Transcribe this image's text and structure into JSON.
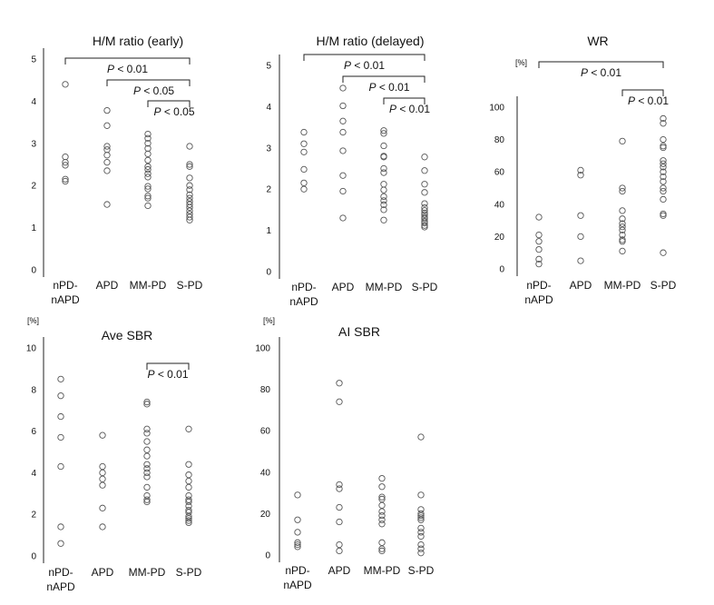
{
  "chart_data": [
    {
      "type": "scatter",
      "title": "H/M ratio (early)",
      "unit_label": "",
      "categories": [
        "nPD-nAPD",
        "APD",
        "MM-PD",
        "S-PD"
      ],
      "yticks": [
        0,
        1,
        2,
        3,
        4,
        5
      ],
      "ylim": [
        0,
        5
      ],
      "grid": false,
      "values": [
        [
          4.4,
          2.68,
          2.55,
          2.48,
          2.15,
          2.1
        ],
        [
          3.78,
          3.42,
          2.93,
          2.85,
          2.72,
          2.55,
          2.35,
          1.55
        ],
        [
          3.22,
          3.12,
          3.0,
          2.88,
          2.75,
          2.6,
          2.45,
          2.38,
          2.28,
          2.2,
          1.98,
          1.92,
          1.75,
          1.7,
          1.52
        ],
        [
          2.93,
          2.5,
          2.45,
          2.18,
          2.0,
          1.9,
          1.78,
          1.7,
          1.62,
          1.55,
          1.48,
          1.4,
          1.32,
          1.25,
          1.18
        ]
      ],
      "brackets": [
        {
          "from": 0,
          "to": 3,
          "label_p": "P",
          "label_rest": " <  0.01"
        },
        {
          "from": 1,
          "to": 3,
          "label_p": "P",
          "label_rest": " < 0.05"
        },
        {
          "from": 2,
          "to": 3,
          "label_p": "P",
          "label_rest": " < 0.05"
        }
      ]
    },
    {
      "type": "scatter",
      "title": "H/M ratio (delayed)",
      "unit_label": "",
      "categories": [
        "nPD-nAPD",
        "APD",
        "MM-PD",
        "S-PD"
      ],
      "yticks": [
        0,
        1,
        2,
        3,
        4,
        5
      ],
      "ylim": [
        0,
        5
      ],
      "grid": false,
      "values": [
        [
          3.38,
          3.1,
          2.9,
          2.48,
          2.15,
          2.0
        ],
        [
          4.45,
          4.02,
          3.65,
          3.38,
          2.93,
          2.33,
          1.95,
          1.3
        ],
        [
          3.42,
          3.35,
          3.05,
          2.8,
          2.78,
          2.5,
          2.4,
          2.12,
          1.98,
          1.82,
          1.72,
          1.62,
          1.5,
          1.25
        ],
        [
          2.78,
          2.45,
          2.12,
          1.92,
          1.65,
          1.55,
          1.48,
          1.42,
          1.38,
          1.32,
          1.28,
          1.22,
          1.18,
          1.12,
          1.08
        ]
      ],
      "brackets": [
        {
          "from": 0,
          "to": 3,
          "label_p": "P",
          "label_rest": " < 0.01"
        },
        {
          "from": 1,
          "to": 3,
          "label_p": "P",
          "label_rest": " < 0.01"
        },
        {
          "from": 2,
          "to": 3,
          "label_p": "P",
          "label_rest": " < 0.01"
        }
      ]
    },
    {
      "type": "scatter",
      "title": "WR",
      "unit_label": "[%]",
      "categories": [
        "nPD-nAPD",
        "APD",
        "MM-PD",
        "S-PD"
      ],
      "yticks": [
        0,
        20,
        40,
        60,
        80,
        100
      ],
      "ylim": [
        0,
        100
      ],
      "grid": false,
      "values": [
        [
          32,
          21,
          17,
          12,
          6,
          3
        ],
        [
          61,
          58,
          33,
          20,
          5
        ],
        [
          79,
          50,
          48,
          36,
          31,
          28,
          26,
          24,
          21,
          18,
          17,
          11
        ],
        [
          93,
          90,
          80,
          76,
          75,
          67,
          65,
          63,
          60,
          57,
          54,
          50,
          48,
          43,
          34,
          33,
          10
        ]
      ],
      "brackets": [
        {
          "from": 0,
          "to": 3,
          "label_p": "P",
          "label_rest": " < 0.01"
        },
        {
          "from": 2,
          "to": 3,
          "label_p": "P",
          "label_rest": " < 0.01"
        }
      ]
    },
    {
      "type": "scatter",
      "title": "Ave SBR",
      "unit_label": "[%]",
      "categories": [
        "nPD-nAPD",
        "APD",
        "MM-PD",
        "S-PD"
      ],
      "yticks": [
        0,
        2,
        4,
        6,
        8,
        10
      ],
      "ylim": [
        0,
        10
      ],
      "grid": false,
      "values": [
        [
          8.5,
          7.7,
          6.7,
          5.7,
          4.3,
          1.4,
          0.6
        ],
        [
          5.8,
          4.3,
          4.0,
          3.7,
          3.4,
          2.3,
          1.4
        ],
        [
          7.4,
          7.3,
          6.1,
          5.9,
          5.5,
          5.1,
          4.8,
          4.4,
          4.2,
          4.0,
          3.8,
          3.3,
          2.9,
          2.7,
          2.6
        ],
        [
          6.1,
          4.4,
          3.9,
          3.6,
          3.3,
          2.9,
          2.7,
          2.6,
          2.4,
          2.2,
          2.1,
          1.9,
          1.8,
          1.7,
          1.6
        ]
      ],
      "brackets": [
        {
          "from": 2,
          "to": 3,
          "label_p": "P",
          "label_rest": " < 0.01"
        }
      ]
    },
    {
      "type": "scatter",
      "title": "AI SBR",
      "unit_label": "[%]",
      "categories": [
        "nPD-nAPD",
        "APD",
        "MM-PD",
        "S-PD"
      ],
      "yticks": [
        0,
        20,
        40,
        60,
        80,
        100
      ],
      "ylim": [
        0,
        100
      ],
      "grid": false,
      "values": [
        [
          29,
          17,
          11,
          6,
          5,
          4
        ],
        [
          83,
          74,
          34,
          32,
          23,
          16,
          5,
          2
        ],
        [
          37,
          33,
          28,
          27,
          24,
          21,
          19,
          17,
          15,
          6,
          3,
          2
        ],
        [
          57,
          29,
          22,
          20,
          19,
          18,
          17,
          13,
          11,
          9,
          5,
          3,
          1
        ]
      ],
      "brackets": []
    }
  ],
  "colors": {
    "marker_stroke": "#555555",
    "axis": "#222222",
    "text": "#111111"
  }
}
